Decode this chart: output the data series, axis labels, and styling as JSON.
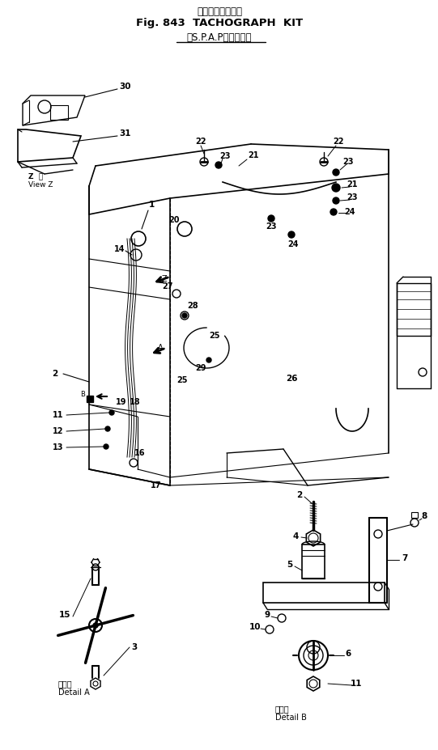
{
  "title_jp": "タコグラフキット",
  "title_en": "Fig. 843  TACHOGRAPH  KIT",
  "title_sub": "（S.P.A.P装著車用）",
  "bg_color": "#ffffff",
  "line_color": "#000000",
  "fig_width": 5.41,
  "fig_height": 9.27,
  "dpi": 100
}
